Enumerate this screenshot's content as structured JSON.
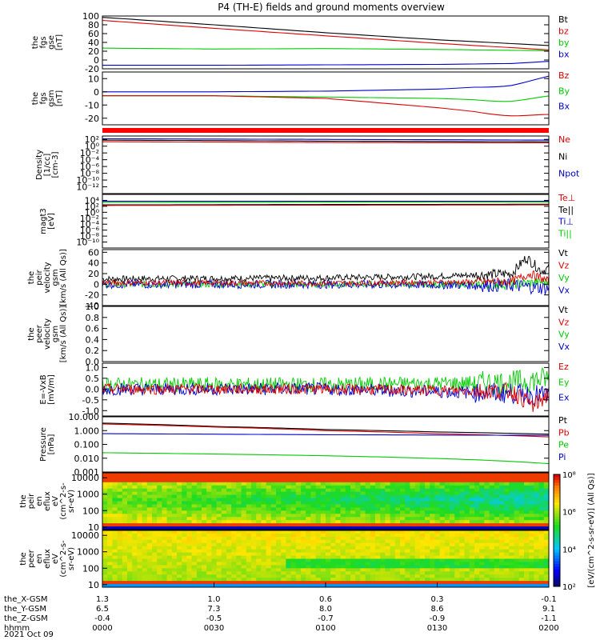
{
  "title": "P4 (TH-E) fields and ground moments overview",
  "date_label": "2021 Oct 09",
  "colors": {
    "black": "#000000",
    "red": "#dd0000",
    "green": "#00cc00",
    "blue": "#0000cc"
  },
  "chart_data": {
    "type": "line",
    "x_axis": {
      "ticks": [
        {
          "hhmm": "0000",
          "x": "1.3",
          "y": "6.5",
          "z": "-0.4"
        },
        {
          "hhmm": "0030",
          "x": "1.0",
          "y": "7.3",
          "z": "-0.5"
        },
        {
          "hhmm": "0100",
          "x": "0.6",
          "y": "8.0",
          "z": "-0.7"
        },
        {
          "hhmm": "0130",
          "x": "0.3",
          "y": "8.6",
          "z": "-0.9"
        },
        {
          "hhmm": "0200",
          "x": "-0.1",
          "y": "9.1",
          "z": "-1.1"
        }
      ],
      "row_labels": [
        "the_X-GSM",
        "the_Y-GSM",
        "the_Z-GSM",
        "hhmm"
      ]
    },
    "panels": [
      {
        "id": "fgs-gse",
        "ylabel": [
          "the",
          "fgs",
          "gse",
          "[nT]"
        ],
        "ylim": [
          -20,
          100
        ],
        "ticks": [
          "100",
          "80",
          "60",
          "40",
          "20",
          "0",
          "-20"
        ],
        "tick_values": [
          100,
          80,
          60,
          40,
          20,
          0,
          -20
        ],
        "legend": [
          [
            "Bt",
            "black"
          ],
          [
            "bz",
            "red"
          ],
          [
            "by",
            "green"
          ],
          [
            "bx",
            "blue"
          ]
        ],
        "series": [
          {
            "color": "black",
            "points": [
              [
                0,
                97
              ],
              [
                30,
                80
              ],
              [
                60,
                62
              ],
              [
                90,
                46
              ],
              [
                120,
                33
              ]
            ]
          },
          {
            "color": "red",
            "points": [
              [
                0,
                90
              ],
              [
                30,
                72
              ],
              [
                60,
                55
              ],
              [
                90,
                38
              ],
              [
                120,
                23
              ]
            ]
          },
          {
            "color": "green",
            "points": [
              [
                0,
                27
              ],
              [
                30,
                25
              ],
              [
                60,
                26
              ],
              [
                90,
                24
              ],
              [
                120,
                21
              ]
            ]
          },
          {
            "color": "blue",
            "points": [
              [
                0,
                -12
              ],
              [
                30,
                -12
              ],
              [
                60,
                -11
              ],
              [
                90,
                -10
              ],
              [
                110,
                -8
              ],
              [
                120,
                -3
              ]
            ]
          }
        ]
      },
      {
        "id": "fgs-gsm",
        "ylabel": [
          "the",
          "fgs",
          "gsm",
          "[nT]"
        ],
        "ylim": [
          -25,
          15
        ],
        "ticks": [
          "10",
          "0",
          "-10",
          "-20"
        ],
        "tick_values": [
          10,
          0,
          -10,
          -20
        ],
        "legend": [
          [
            "Bz",
            "red"
          ],
          [
            "By",
            "green"
          ],
          [
            "Bx",
            "blue"
          ]
        ],
        "series": [
          {
            "color": "blue",
            "points": [
              [
                0,
                0
              ],
              [
                30,
                0
              ],
              [
                60,
                0.5
              ],
              [
                90,
                2
              ],
              [
                110,
                5
              ],
              [
                120,
                9
              ]
            ]
          },
          {
            "color": "green",
            "points": [
              [
                0,
                -3
              ],
              [
                30,
                -3
              ],
              [
                60,
                -4
              ],
              [
                90,
                -5
              ],
              [
                110,
                -7
              ],
              [
                120,
                -6
              ]
            ]
          },
          {
            "color": "red",
            "points": [
              [
                0,
                -3
              ],
              [
                30,
                -3
              ],
              [
                60,
                -5
              ],
              [
                90,
                -12
              ],
              [
                110,
                -18
              ],
              [
                120,
                -20
              ]
            ]
          }
        ]
      },
      {
        "id": "density",
        "ylabel": [
          "Density",
          "[1/cc]",
          "[cm-3]"
        ],
        "log": true,
        "ylim": [
          1e-14,
          1000.0
        ],
        "ticks": [
          "10²",
          "10⁰",
          "10⁻²",
          "10⁻⁴",
          "10⁻⁶",
          "10⁻⁸",
          "10⁻¹⁰",
          "10⁻¹²"
        ],
        "tick_values": [
          100.0,
          1,
          0.01,
          0.0001,
          1e-06,
          1e-08,
          1e-10,
          1e-12
        ],
        "legend": [
          [
            "Ne",
            "red"
          ],
          [
            "Ni",
            "black"
          ],
          [
            "Npot",
            "blue"
          ]
        ],
        "series": [
          {
            "color": "blue",
            "points": [
              [
                0,
                150
              ],
              [
                60,
                100
              ],
              [
                120,
                60
              ]
            ]
          },
          {
            "color": "black",
            "points": [
              [
                0,
                60
              ],
              [
                60,
                30
              ],
              [
                120,
                20
              ]
            ]
          },
          {
            "color": "red",
            "points": [
              [
                0,
                20
              ],
              [
                60,
                12
              ],
              [
                120,
                10
              ]
            ]
          }
        ]
      },
      {
        "id": "temperature",
        "ylabel": [
          "magt3",
          "[eV]"
        ],
        "log": true,
        "ylim": [
          1e-12,
          1000000.0
        ],
        "ticks": [
          "10⁴",
          "10²",
          "10⁰",
          "10⁻²",
          "10⁻⁴",
          "10⁻⁶",
          "10⁻⁸",
          "10⁻¹⁰"
        ],
        "tick_values": [
          10000.0,
          100.0,
          1,
          0.01,
          0.0001,
          1e-06,
          1e-08,
          1e-10
        ],
        "legend": [
          [
            "Te⊥",
            "red"
          ],
          [
            "Te||",
            "black"
          ],
          [
            "Ti⊥",
            "blue"
          ],
          [
            "Ti||",
            "green"
          ]
        ],
        "series": [
          {
            "color": "blue",
            "points": [
              [
                0,
                5000
              ],
              [
                120,
                5000
              ]
            ]
          },
          {
            "color": "green",
            "points": [
              [
                0,
                2000
              ],
              [
                120,
                3000
              ]
            ]
          },
          {
            "color": "black",
            "points": [
              [
                0,
                300
              ],
              [
                120,
                500
              ]
            ]
          },
          {
            "color": "red",
            "points": [
              [
                0,
                200
              ],
              [
                120,
                300
              ]
            ]
          }
        ]
      },
      {
        "id": "peir-velocity",
        "ylabel": [
          "the",
          "peir",
          "velocity",
          "gsm",
          "[km/s (All Qs)]"
        ],
        "ylim": [
          -40,
          65
        ],
        "ticks": [
          "60",
          "40",
          "20",
          "0",
          "-20",
          "-40"
        ],
        "tick_values": [
          60,
          40,
          20,
          0,
          -20,
          -40
        ],
        "legend": [
          [
            "Vt",
            "black"
          ],
          [
            "Vz",
            "red"
          ],
          [
            "Vy",
            "green"
          ],
          [
            "Vx",
            "blue"
          ]
        ],
        "series": [
          {
            "color": "black",
            "points": [
              [
                0,
                10
              ],
              [
                60,
                12
              ],
              [
                90,
                15
              ],
              [
                110,
                20
              ],
              [
                114,
                50
              ],
              [
                118,
                25
              ],
              [
                120,
                30
              ]
            ]
          },
          {
            "color": "green",
            "points": [
              [
                0,
                0
              ],
              [
                60,
                0
              ],
              [
                110,
                0
              ],
              [
                120,
                5
              ]
            ]
          },
          {
            "color": "blue",
            "points": [
              [
                0,
                0
              ],
              [
                60,
                0
              ],
              [
                110,
                -2
              ],
              [
                120,
                -8
              ]
            ]
          },
          {
            "color": "red",
            "points": [
              [
                0,
                3
              ],
              [
                60,
                2
              ],
              [
                110,
                5
              ],
              [
                115,
                20
              ],
              [
                120,
                5
              ]
            ]
          }
        ]
      },
      {
        "id": "peer-velocity",
        "ylabel": [
          "the",
          "peer",
          "velocity",
          "gsm",
          "[km/s (All Qs)]"
        ],
        "ylim": [
          0,
          1
        ],
        "ticks": [
          "1.0",
          "0.8",
          "0.6",
          "0.4",
          "0.2",
          "0.0"
        ],
        "tick_values": [
          1,
          0.8,
          0.6,
          0.4,
          0.2,
          0
        ],
        "legend": [
          [
            "Vt",
            "black"
          ],
          [
            "Vz",
            "red"
          ],
          [
            "Vy",
            "green"
          ],
          [
            "Vx",
            "blue"
          ]
        ],
        "series": []
      },
      {
        "id": "efield",
        "ylabel": [
          "E=-VxB",
          "[mV/m]"
        ],
        "ylim": [
          -1.25,
          1.2
        ],
        "ticks": [
          "1.0",
          "0.5",
          "0.0",
          "-0.5",
          "-1.0"
        ],
        "tick_values": [
          1,
          0.5,
          0,
          -0.5,
          -1
        ],
        "legend": [
          [
            "Ez",
            "red"
          ],
          [
            "Ey",
            "green"
          ],
          [
            "Ex",
            "blue"
          ]
        ],
        "series": [
          {
            "color": "green",
            "points": [
              [
                0,
                0.2
              ],
              [
                60,
                0.2
              ],
              [
                110,
                0.3
              ],
              [
                120,
                0.5
              ]
            ]
          },
          {
            "color": "blue",
            "points": [
              [
                0,
                0
              ],
              [
                60,
                0
              ],
              [
                110,
                -0.2
              ],
              [
                120,
                -0.3
              ]
            ]
          },
          {
            "color": "red",
            "points": [
              [
                0,
                0
              ],
              [
                60,
                0
              ],
              [
                110,
                -0.1
              ],
              [
                116,
                -0.8
              ],
              [
                120,
                -0.2
              ]
            ]
          }
        ]
      },
      {
        "id": "pressure",
        "ylabel": [
          "Pressure",
          "[nPa]"
        ],
        "log": true,
        "ylim": [
          0.001,
          10
        ],
        "ticks": [
          "10.000",
          "1.000",
          "0.100",
          "0.010",
          "0.001"
        ],
        "tick_values": [
          10,
          1,
          0.1,
          0.01,
          0.001
        ],
        "legend": [
          [
            "Pt",
            "black"
          ],
          [
            "Pb",
            "red"
          ],
          [
            "Pe",
            "green"
          ],
          [
            "Pi",
            "blue"
          ]
        ],
        "series": [
          {
            "color": "black",
            "points": [
              [
                0,
                3.5
              ],
              [
                30,
                2.0
              ],
              [
                60,
                1.2
              ],
              [
                90,
                0.8
              ],
              [
                120,
                0.55
              ]
            ]
          },
          {
            "color": "red",
            "points": [
              [
                0,
                3.0
              ],
              [
                30,
                1.8
              ],
              [
                60,
                1.0
              ],
              [
                90,
                0.6
              ],
              [
                120,
                0.35
              ]
            ]
          },
          {
            "color": "blue",
            "points": [
              [
                0,
                0.6
              ],
              [
                60,
                0.5
              ],
              [
                120,
                0.45
              ]
            ]
          },
          {
            "color": "green",
            "points": [
              [
                0,
                0.025
              ],
              [
                60,
                0.015
              ],
              [
                120,
                0.004
              ]
            ]
          }
        ]
      }
    ],
    "spectrograms": [
      {
        "id": "peir-eflux",
        "ylabel": [
          "the",
          "peir",
          "en",
          "eflux",
          "eV",
          "(cm^2-s-",
          "sr-eV)"
        ],
        "ylim": [
          7,
          20000
        ],
        "ticks": [
          "10000",
          "1000",
          "100",
          "10"
        ],
        "tick_values": [
          10000,
          1000,
          100,
          10
        ]
      },
      {
        "id": "peer-eflux",
        "ylabel": [
          "the",
          "peer",
          "en",
          "eflux",
          "eV",
          "(cm^2-s-",
          "sr-eV)"
        ],
        "ylim": [
          7,
          20000
        ],
        "ticks": [
          "10000",
          "1000",
          "100",
          "10"
        ],
        "tick_values": [
          10000,
          1000,
          100,
          10
        ]
      }
    ],
    "colorbar": {
      "ticks": [
        "10⁸",
        "10⁶",
        "10⁴",
        "10²"
      ],
      "range": [
        100,
        100000000
      ],
      "label": "[eV/(cm^2-s-sr-eV)] (All Qs)]"
    }
  }
}
